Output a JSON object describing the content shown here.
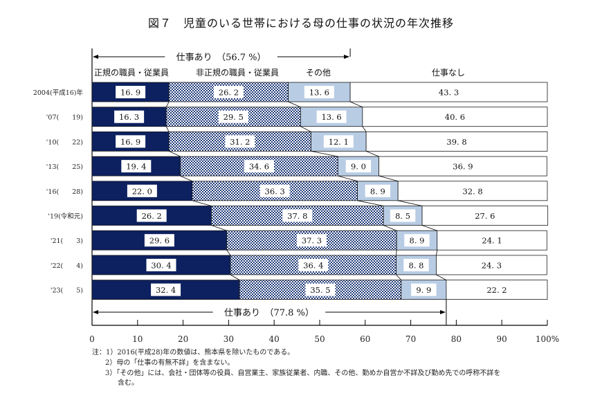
{
  "chart_data": {
    "type": "bar",
    "orientation": "horizontal",
    "stacked": true,
    "title": "図７　児童のいる世帯における母の仕事の状況の年次推移",
    "categories": [
      "2004(平成16)年",
      "'07(　　19)",
      "'10(　　22)",
      "'13(　　25)",
      "'16(　　28)",
      "'19(令和元)",
      "'21(　　3)",
      "'22(　　4)",
      "'23(　　5)"
    ],
    "series": [
      {
        "name": "正規の職員・従業員",
        "color": "#0d2160",
        "pattern": "solid",
        "values": [
          16.9,
          16.3,
          16.9,
          19.4,
          22.0,
          26.2,
          29.6,
          30.4,
          32.4
        ]
      },
      {
        "name": "非正規の職員・従業員",
        "color": "#1f3a7a",
        "pattern": "checker",
        "values": [
          26.2,
          29.5,
          31.2,
          34.6,
          36.3,
          37.8,
          37.3,
          36.4,
          35.5
        ]
      },
      {
        "name": "その他",
        "color": "#b8cce4",
        "pattern": "solid",
        "values": [
          13.6,
          13.6,
          12.1,
          9.0,
          8.9,
          8.5,
          8.9,
          8.8,
          9.9
        ]
      },
      {
        "name": "仕事なし",
        "color": "#ffffff",
        "pattern": "solid",
        "values": [
          43.3,
          40.6,
          39.8,
          36.9,
          32.8,
          27.6,
          24.1,
          24.3,
          22.2
        ]
      }
    ],
    "annotations": {
      "top": {
        "text": "仕事あり　（56.7 %）",
        "value": 56.7
      },
      "bottom": {
        "text": "仕事あり　（77.8 %）",
        "value": 77.8
      }
    },
    "xlim": [
      0,
      100
    ],
    "xticks": [
      "0",
      "10",
      "20",
      "30",
      "40",
      "50",
      "60",
      "70",
      "80",
      "90",
      "100%"
    ],
    "legend": "top"
  },
  "notes": [
    "注：1）2016(平成28)年の数値は、熊本県を除いたものである。",
    "2）母の「仕事の有無不詳」を含まない。",
    "3）「その他」には、会社・団体等の役員、自営業主、家族従業者、内職、その他、勤めか自営か不詳及び勤め先での呼称不詳を",
    "含む。"
  ]
}
